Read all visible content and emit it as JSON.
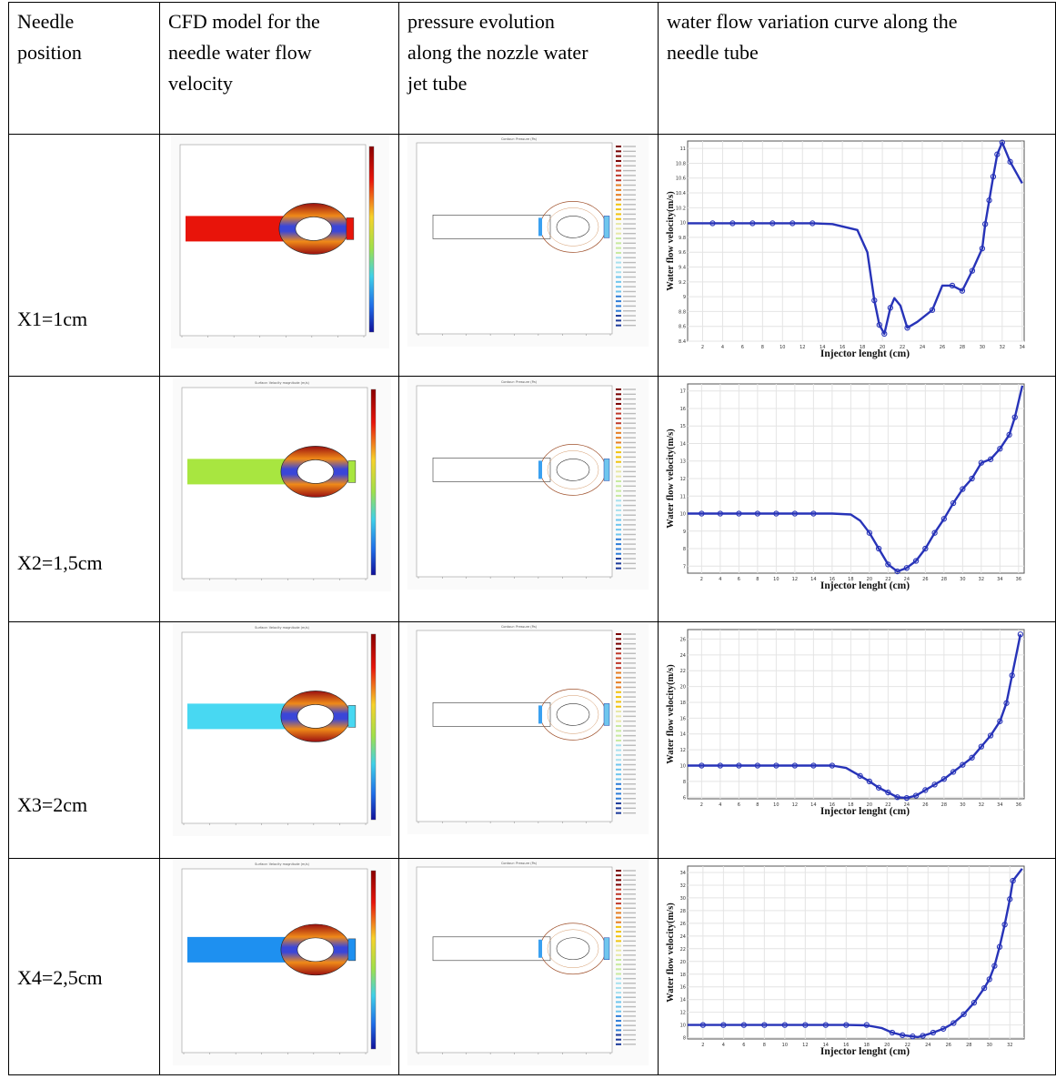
{
  "table": {
    "headers": [
      "Needle position",
      "CFD model for the needle water flow velocity",
      "pressure evolution along the nozzle water jet tube",
      "water flow variation curve along the needle tube"
    ],
    "header_lines": [
      [
        "Needle",
        "position"
      ],
      [
        "CFD model for the",
        "needle water flow",
        "velocity"
      ],
      [
        "pressure evolution",
        "along the nozzle water",
        "jet tube"
      ],
      [
        "water flow variation curve along the",
        "needle tube"
      ]
    ],
    "rows": [
      {
        "position": "X1=1cm",
        "tube_color": "#e8140a",
        "velocity_map_title": "",
        "pressure_map_title": "Contour: Pressure (Pa)"
      },
      {
        "position": "X2=1,5cm",
        "tube_color": "#a8e640",
        "velocity_map_title": "Surface: Velocity magnitude (m/s)",
        "pressure_map_title": "Contour: Pressure (Pa)"
      },
      {
        "position": "X3=2cm",
        "tube_color": "#48d8f2",
        "velocity_map_title": "Surface: Velocity magnitude (m/s)",
        "pressure_map_title": "Contour: Pressure (Pa)"
      },
      {
        "position": "X4=2,5cm",
        "tube_color": "#1e90f0",
        "velocity_map_title": "Surface: Velocity magnitude (m/s)",
        "pressure_map_title": "Contour: Pressure (Pa)"
      }
    ]
  },
  "colors": {
    "curve": "#2733b8",
    "grid": "#e4e4e4"
  },
  "chart_data": [
    {
      "type": "line",
      "xlabel": "Injector lenght (cm)",
      "ylabel": "Water flow velocity(m/s)",
      "xlim": [
        0.5,
        34.2
      ],
      "ylim": [
        8.4,
        11.1
      ],
      "xticks": [
        2,
        4,
        6,
        8,
        10,
        12,
        14,
        16,
        18,
        20,
        22,
        24,
        26,
        28,
        30,
        32,
        34
      ],
      "yticks": [
        8.4,
        8.6,
        8.8,
        9,
        9.2,
        9.4,
        9.6,
        9.8,
        10,
        10.2,
        10.4,
        10.6,
        10.8,
        11
      ],
      "x": [
        0.5,
        3.0,
        5.0,
        7.0,
        9.0,
        11.0,
        13.0,
        15.0,
        17.5,
        18.5,
        19.2,
        19.7,
        20.2,
        20.8,
        21.2,
        21.8,
        22.5,
        23.5,
        25.0,
        26.0,
        27.0,
        28.0,
        29.0,
        30.0,
        30.3,
        30.7,
        31.1,
        31.5,
        32.0,
        32.8,
        34.0
      ],
      "y": [
        9.99,
        9.99,
        9.99,
        9.99,
        9.99,
        9.99,
        9.99,
        9.98,
        9.9,
        9.6,
        8.95,
        8.62,
        8.5,
        8.85,
        8.98,
        8.88,
        8.58,
        8.66,
        8.82,
        9.15,
        9.15,
        9.08,
        9.35,
        9.65,
        9.98,
        10.3,
        10.62,
        10.92,
        11.08,
        10.82,
        10.53
      ],
      "markers_x": [
        3.0,
        5.0,
        7.0,
        9.0,
        11.0,
        13.0,
        19.2,
        19.7,
        20.2,
        20.8,
        22.5,
        25.0,
        27.0,
        28.0,
        29.0,
        30.0,
        30.3,
        30.7,
        31.1,
        31.5,
        32.0,
        32.8
      ],
      "markers_y": [
        9.99,
        9.99,
        9.99,
        9.99,
        9.99,
        9.99,
        8.95,
        8.62,
        8.5,
        8.85,
        8.58,
        8.82,
        9.15,
        9.08,
        9.35,
        9.65,
        9.98,
        10.3,
        10.62,
        10.92,
        11.08,
        10.82
      ]
    },
    {
      "type": "line",
      "xlabel": "Injector lenght (cm)",
      "ylabel": "Water flow velocity(m/s)",
      "xlim": [
        0.5,
        36.6
      ],
      "ylim": [
        6.6,
        17.4
      ],
      "xticks": [
        2,
        4,
        6,
        8,
        10,
        12,
        14,
        16,
        18,
        20,
        22,
        24,
        26,
        28,
        30,
        32,
        34,
        36
      ],
      "yticks": [
        7,
        8,
        9,
        10,
        11,
        12,
        13,
        14,
        15,
        16,
        17
      ],
      "x": [
        0.5,
        2.0,
        4.0,
        6.0,
        8.0,
        10.0,
        12.0,
        14.0,
        16.0,
        18.0,
        19.0,
        20.0,
        21.0,
        22.0,
        23.0,
        24.0,
        25.0,
        26.0,
        27.0,
        28.0,
        29.0,
        30.0,
        31.0,
        32.0,
        33.0,
        34.0,
        35.0,
        35.6,
        36.4
      ],
      "y": [
        10.0,
        10.0,
        10.0,
        10.0,
        10.0,
        10.0,
        10.0,
        10.0,
        10.0,
        9.95,
        9.6,
        8.9,
        8.0,
        7.1,
        6.7,
        6.9,
        7.3,
        8.0,
        8.9,
        9.7,
        10.6,
        11.4,
        12.0,
        12.9,
        13.1,
        13.7,
        14.5,
        15.5,
        17.3
      ],
      "markers_x": [
        2.0,
        4.0,
        6.0,
        8.0,
        10.0,
        12.0,
        14.0,
        20.0,
        21.0,
        22.0,
        23.0,
        24.0,
        25.0,
        26.0,
        27.0,
        28.0,
        29.0,
        30.0,
        31.0,
        32.0,
        33.0,
        34.0,
        35.0,
        35.6
      ],
      "markers_y": [
        10.0,
        10.0,
        10.0,
        10.0,
        10.0,
        10.0,
        10.0,
        8.9,
        8.0,
        7.1,
        6.7,
        6.9,
        7.3,
        8.0,
        8.9,
        9.7,
        10.6,
        11.4,
        12.0,
        12.9,
        13.1,
        13.7,
        14.5,
        15.5
      ]
    },
    {
      "type": "line",
      "xlabel": "Injector lenght (cm)",
      "ylabel": "Water flow velocity(m/s)",
      "xlim": [
        0.5,
        36.6
      ],
      "ylim": [
        5.8,
        27.2
      ],
      "xticks": [
        2,
        4,
        6,
        8,
        10,
        12,
        14,
        16,
        18,
        20,
        22,
        24,
        26,
        28,
        30,
        32,
        34,
        36
      ],
      "yticks": [
        6,
        8,
        10,
        12,
        14,
        16,
        18,
        20,
        22,
        24,
        26
      ],
      "x": [
        0.5,
        2.0,
        4.0,
        6.0,
        8.0,
        10.0,
        12.0,
        14.0,
        16.0,
        17.5,
        19.0,
        20.0,
        21.0,
        22.0,
        23.0,
        24.0,
        25.0,
        26.0,
        27.0,
        28.0,
        29.0,
        30.0,
        31.0,
        32.0,
        33.0,
        34.0,
        34.7,
        35.3,
        36.2
      ],
      "y": [
        10.0,
        10.0,
        10.0,
        10.0,
        10.0,
        10.0,
        10.0,
        10.0,
        10.0,
        9.7,
        8.7,
        8.0,
        7.2,
        6.6,
        6.0,
        5.9,
        6.2,
        6.9,
        7.6,
        8.3,
        9.2,
        10.1,
        11.0,
        12.4,
        13.8,
        15.6,
        17.9,
        21.4,
        26.6
      ],
      "markers_x": [
        2.0,
        4.0,
        6.0,
        8.0,
        10.0,
        12.0,
        14.0,
        16.0,
        19.0,
        20.0,
        21.0,
        22.0,
        23.0,
        24.0,
        25.0,
        26.0,
        27.0,
        28.0,
        29.0,
        30.0,
        31.0,
        32.0,
        33.0,
        34.0,
        34.7,
        35.3,
        36.2
      ],
      "markers_y": [
        10.0,
        10.0,
        10.0,
        10.0,
        10.0,
        10.0,
        10.0,
        10.0,
        8.7,
        8.0,
        7.2,
        6.6,
        6.0,
        5.9,
        6.2,
        6.9,
        7.6,
        8.3,
        9.2,
        10.1,
        11.0,
        12.4,
        13.8,
        15.6,
        17.9,
        21.4,
        26.6
      ]
    },
    {
      "type": "line",
      "xlabel": "Injector lenght (cm)",
      "ylabel": "Water flow velocity(m/s)",
      "xlim": [
        0.5,
        33.4
      ],
      "ylim": [
        7.8,
        35.0
      ],
      "xticks": [
        2,
        4,
        6,
        8,
        10,
        12,
        14,
        16,
        18,
        20,
        22,
        24,
        26,
        28,
        30,
        32
      ],
      "yticks": [
        8,
        10,
        12,
        14,
        16,
        18,
        20,
        22,
        24,
        26,
        28,
        30,
        32,
        34
      ],
      "x": [
        0.5,
        2.0,
        4.0,
        6.0,
        8.0,
        10.0,
        12.0,
        14.0,
        16.0,
        18.0,
        19.5,
        20.5,
        21.5,
        22.5,
        23.0,
        23.5,
        24.5,
        25.5,
        26.5,
        27.5,
        28.5,
        29.5,
        30.0,
        30.5,
        31.0,
        31.5,
        32.0,
        32.3,
        33.2
      ],
      "y": [
        10.0,
        10.0,
        10.0,
        10.0,
        10.0,
        10.0,
        10.0,
        10.0,
        10.0,
        9.95,
        9.5,
        8.8,
        8.4,
        8.2,
        8.1,
        8.3,
        8.8,
        9.4,
        10.3,
        11.7,
        13.5,
        15.8,
        17.2,
        19.3,
        22.3,
        25.8,
        29.8,
        32.7,
        34.6
      ],
      "markers_x": [
        2.0,
        4.0,
        6.0,
        8.0,
        10.0,
        12.0,
        14.0,
        16.0,
        18.0,
        20.5,
        21.5,
        22.5,
        23.5,
        24.5,
        25.5,
        26.5,
        27.5,
        28.5,
        29.5,
        30.0,
        30.5,
        31.0,
        31.5,
        32.0,
        32.3
      ],
      "markers_y": [
        10.0,
        10.0,
        10.0,
        10.0,
        10.0,
        10.0,
        10.0,
        10.0,
        10.0,
        8.8,
        8.4,
        8.2,
        8.3,
        8.8,
        9.4,
        10.3,
        11.7,
        13.5,
        15.8,
        17.2,
        19.3,
        22.3,
        25.8,
        29.8,
        32.7
      ]
    }
  ]
}
